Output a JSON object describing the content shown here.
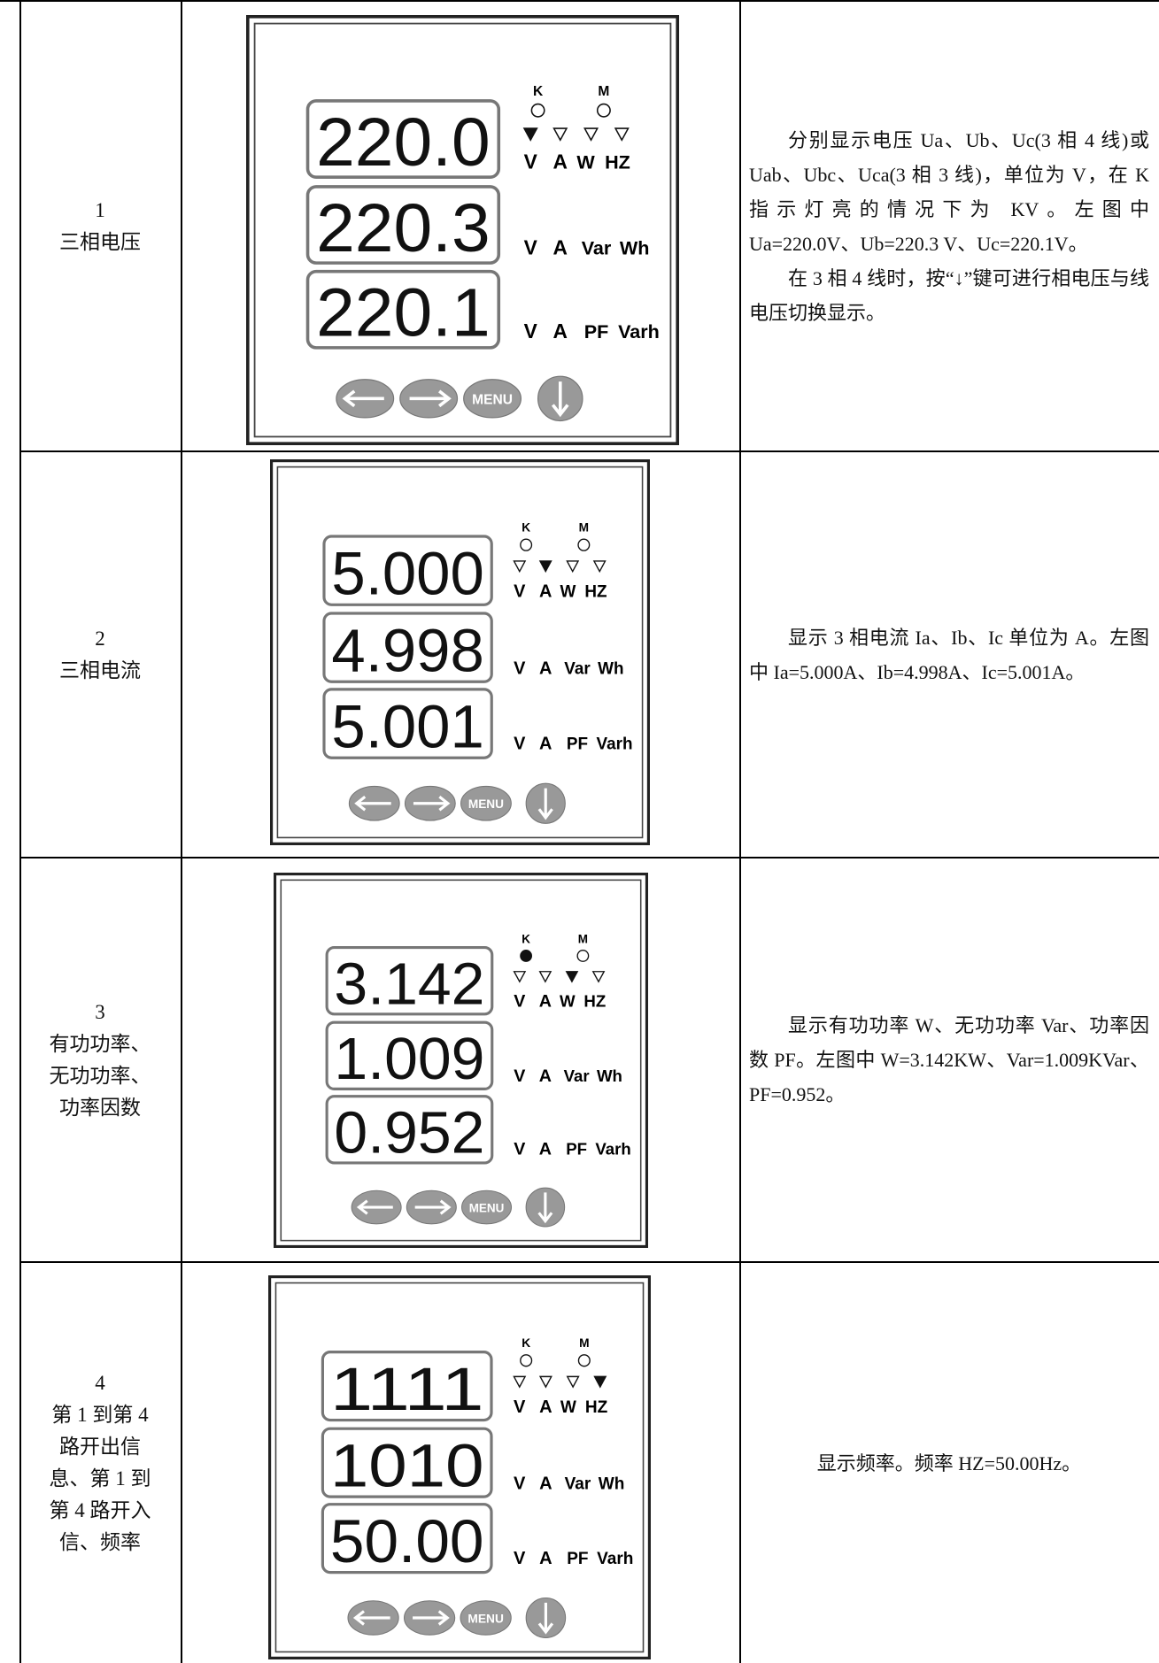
{
  "panel_labels": {
    "k": "K",
    "m": "M",
    "line1": [
      "V",
      "A",
      "W",
      "HZ"
    ],
    "line2": [
      "V",
      "A",
      "Var",
      "Wh"
    ],
    "line3": [
      "V",
      "A",
      "PF",
      "Varh"
    ],
    "menu": "MENU"
  },
  "rows": [
    {
      "index": "1",
      "label": [
        "三相电压"
      ],
      "panel": {
        "displays": [
          "220.0",
          "220.3",
          "220.1"
        ],
        "active_indicator": 0,
        "k_lit": false
      },
      "description": [
        "分别显示电压 Ua、Ub、Uc(3 相 4 线)或 Uab、Ubc、Uca(3 相 3 线)，单位为 V，在 K 指示灯亮的情况下为 KV。左图中 Ua=220.0V、Ub=220.3 V、Uc=220.1V。",
        "在 3 相 4 线时，按“↓”键可进行相电压与线电压切换显示。"
      ]
    },
    {
      "index": "2",
      "label": [
        "三相电流"
      ],
      "panel": {
        "displays": [
          "5.000",
          "4.998",
          "5.001"
        ],
        "active_indicator": 1,
        "k_lit": false
      },
      "description": [
        "显示 3 相电流 Ia、Ib、Ic 单位为 A。左图中 Ia=5.000A、Ib=4.998A、Ic=5.001A。"
      ]
    },
    {
      "index": "3",
      "label": [
        "有功功率、",
        "无功功率、",
        "功率因数"
      ],
      "panel": {
        "displays": [
          "3.142",
          "1.009",
          "0.952"
        ],
        "active_indicator": 2,
        "k_lit": true
      },
      "description": [
        "显示有功功率 W、无功功率 Var、功率因数 PF。左图中 W=3.142KW、Var=1.009KVar、PF=0.952。"
      ]
    },
    {
      "index": "4",
      "label": [
        "第 1 到第 4",
        "路开出信",
        "息、第 1 到",
        "第 4 路开入",
        "信、频率"
      ],
      "panel": {
        "displays": [
          "1111",
          "1010",
          "50.00"
        ],
        "active_indicator": 3,
        "k_lit": false
      },
      "description": [
        "显示频率。频率 HZ=50.00Hz。"
      ]
    }
  ]
}
